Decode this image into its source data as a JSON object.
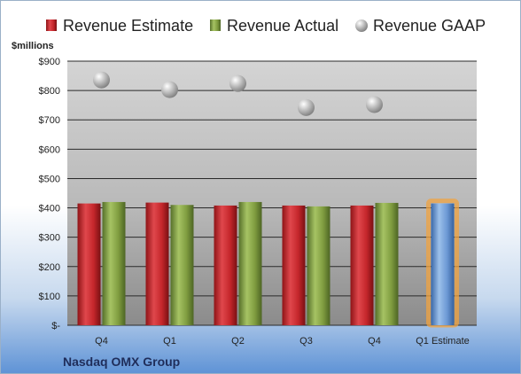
{
  "chart_data": {
    "type": "bar",
    "title": "",
    "company": "Nasdaq OMX Group",
    "ylabel": "$millions",
    "ylim": [
      0,
      900
    ],
    "ytick_labels": [
      "$-",
      "$100",
      "$200",
      "$300",
      "$400",
      "$500",
      "$600",
      "$700",
      "$800",
      "$900"
    ],
    "ytick_values": [
      0,
      100,
      200,
      300,
      400,
      500,
      600,
      700,
      800,
      900
    ],
    "categories": [
      "Q4",
      "Q1",
      "Q2",
      "Q3",
      "Q4",
      "Q1 Estimate"
    ],
    "grid": true,
    "legend_position": "top",
    "series": [
      {
        "name": "Revenue Estimate",
        "kind": "bar",
        "color": "#c0272d",
        "values": [
          415,
          418,
          408,
          408,
          408,
          null
        ]
      },
      {
        "name": "Revenue Actual",
        "kind": "bar",
        "color": "#7a9a3a",
        "values": [
          420,
          410,
          420,
          405,
          417,
          null
        ]
      },
      {
        "name": "Revenue GAAP",
        "kind": "marker",
        "color": "#a8a8a8",
        "values": [
          836,
          803,
          824,
          742,
          752,
          null
        ]
      },
      {
        "name": "",
        "kind": "bar",
        "color": "#5b8fd1",
        "highlight": "#f0a340",
        "values": [
          null,
          null,
          null,
          null,
          null,
          415
        ]
      }
    ]
  }
}
